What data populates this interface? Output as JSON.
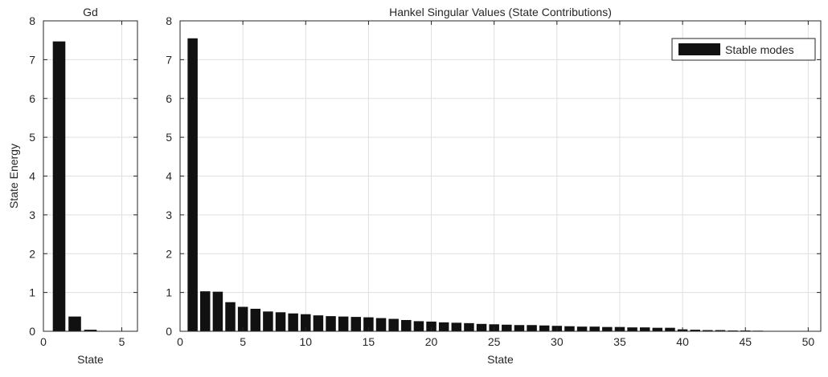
{
  "chart_data": [
    {
      "type": "bar",
      "title": "Gd",
      "xlabel": "State",
      "ylabel": "State Energy",
      "xlim": [
        0,
        6
      ],
      "ylim": [
        0,
        8
      ],
      "xticks": [
        0,
        5
      ],
      "yticks": [
        0,
        1,
        2,
        3,
        4,
        5,
        6,
        7,
        8
      ],
      "grid": true,
      "bar_color": "#111111",
      "x": [
        1,
        2,
        3,
        4,
        5
      ],
      "values": [
        7.47,
        0.38,
        0.04,
        0.01,
        0.005
      ]
    },
    {
      "type": "bar",
      "title": "Hankel Singular Values (State Contributions)",
      "xlabel": "State",
      "ylabel": "",
      "xlim": [
        0,
        51
      ],
      "ylim": [
        0,
        8
      ],
      "xticks": [
        0,
        5,
        10,
        15,
        20,
        25,
        30,
        35,
        40,
        45,
        50
      ],
      "yticks": [
        0,
        1,
        2,
        3,
        4,
        5,
        6,
        7,
        8
      ],
      "grid": true,
      "bar_color": "#111111",
      "legend": {
        "position": "top-right",
        "entries": [
          "Stable modes"
        ]
      },
      "x": [
        1,
        2,
        3,
        4,
        5,
        6,
        7,
        8,
        9,
        10,
        11,
        12,
        13,
        14,
        15,
        16,
        17,
        18,
        19,
        20,
        21,
        22,
        23,
        24,
        25,
        26,
        27,
        28,
        29,
        30,
        31,
        32,
        33,
        34,
        35,
        36,
        37,
        38,
        39,
        40,
        41,
        42,
        43,
        44,
        45,
        46,
        47,
        48,
        49,
        50
      ],
      "values": [
        7.55,
        1.03,
        1.02,
        0.75,
        0.63,
        0.58,
        0.51,
        0.49,
        0.46,
        0.44,
        0.41,
        0.39,
        0.38,
        0.37,
        0.36,
        0.34,
        0.32,
        0.29,
        0.26,
        0.25,
        0.23,
        0.22,
        0.21,
        0.19,
        0.18,
        0.17,
        0.16,
        0.16,
        0.15,
        0.14,
        0.13,
        0.12,
        0.12,
        0.11,
        0.11,
        0.1,
        0.1,
        0.09,
        0.09,
        0.05,
        0.04,
        0.03,
        0.03,
        0.02,
        0.02,
        0.015,
        0.01,
        0.01,
        0.008,
        0.005
      ]
    }
  ]
}
